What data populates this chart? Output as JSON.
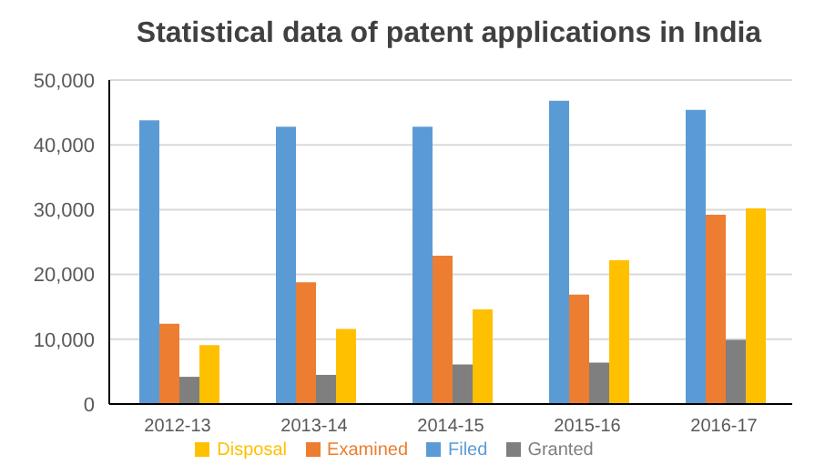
{
  "chart_data": {
    "type": "bar",
    "title": "Statistical data of patent applications in India",
    "categories": [
      "2012-13",
      "2013-14",
      "2014-15",
      "2015-16",
      "2016-17"
    ],
    "series": [
      {
        "name": "Filed",
        "color": "#5b9bd5",
        "values": [
          43800,
          42800,
          42800,
          46800,
          45400
        ]
      },
      {
        "name": "Examined",
        "color": "#ed7d31",
        "values": [
          12400,
          18800,
          22900,
          16900,
          29200
        ]
      },
      {
        "name": "Granted",
        "color": "#7f7f7f",
        "values": [
          4200,
          4500,
          6100,
          6400,
          9900
        ]
      },
      {
        "name": "Disposal",
        "color": "#ffc000",
        "values": [
          9100,
          11600,
          14600,
          22200,
          30200
        ]
      }
    ],
    "ylim": [
      0,
      50000
    ],
    "yticks": [
      {
        "value": 0,
        "label": "0"
      },
      {
        "value": 10000,
        "label": "10,000"
      },
      {
        "value": 20000,
        "label": "20,000"
      },
      {
        "value": 30000,
        "label": "30,000"
      },
      {
        "value": 40000,
        "label": "40,000"
      },
      {
        "value": 50000,
        "label": "50,000"
      }
    ],
    "grid": "y",
    "legend": "bottom"
  }
}
